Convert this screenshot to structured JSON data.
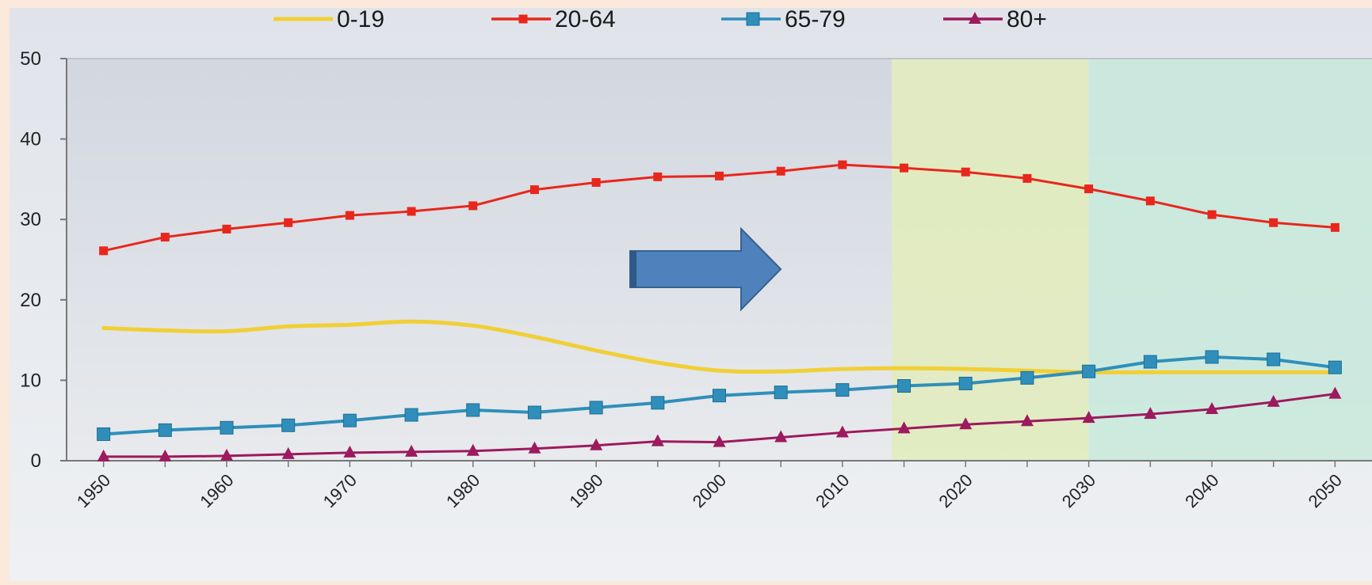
{
  "chart_data": {
    "type": "line",
    "title": "",
    "xlabel": "",
    "ylabel": "",
    "ylim": [
      0,
      50
    ],
    "yticks": [
      0,
      10,
      20,
      30,
      40,
      50
    ],
    "xlim": [
      1947,
      2053
    ],
    "xticks": [
      1950,
      1960,
      1970,
      1980,
      1990,
      2000,
      2010,
      2020,
      2030,
      2040,
      2050
    ],
    "grid": false,
    "legend_position": "top",
    "shaded_periods": [
      {
        "from": 2014,
        "to": 2030,
        "color": "#e2ecbf"
      },
      {
        "from": 2030,
        "to": 2053,
        "color": "#cbe9dd"
      }
    ],
    "annotation": {
      "type": "arrow",
      "direction": "right",
      "color": "#4f81bd"
    },
    "series": [
      {
        "name": "0-19",
        "color": "#f1cf35",
        "marker": "none",
        "smooth": true,
        "x": [
          1950,
          1955,
          1960,
          1965,
          1970,
          1975,
          1980,
          1985,
          1990,
          1995,
          2000,
          2005,
          2010,
          2015,
          2020,
          2025,
          2030,
          2035,
          2040,
          2045,
          2050
        ],
        "values": [
          16.5,
          16.2,
          16.1,
          16.7,
          16.9,
          17.3,
          16.8,
          15.4,
          13.7,
          12.2,
          11.2,
          11.1,
          11.4,
          11.5,
          11.4,
          11.2,
          11.0,
          11.0,
          11.0,
          11.0,
          11.0
        ]
      },
      {
        "name": "20-64",
        "color": "#e8271c",
        "marker": "square-small",
        "smooth": false,
        "x": [
          1950,
          1955,
          1960,
          1965,
          1970,
          1975,
          1980,
          1985,
          1990,
          1995,
          2000,
          2005,
          2010,
          2015,
          2020,
          2025,
          2030,
          2035,
          2040,
          2045,
          2050
        ],
        "values": [
          26.1,
          27.8,
          28.8,
          29.6,
          30.5,
          31.0,
          31.7,
          33.7,
          34.6,
          35.3,
          35.4,
          36.0,
          36.8,
          36.4,
          35.9,
          35.1,
          33.8,
          32.3,
          30.6,
          29.6,
          29.0
        ]
      },
      {
        "name": "65-79",
        "color": "#2f8fba",
        "marker": "square",
        "smooth": false,
        "x": [
          1950,
          1955,
          1960,
          1965,
          1970,
          1975,
          1980,
          1985,
          1990,
          1995,
          2000,
          2005,
          2010,
          2015,
          2020,
          2025,
          2030,
          2035,
          2040,
          2045,
          2050
        ],
        "values": [
          3.3,
          3.8,
          4.1,
          4.4,
          5.0,
          5.7,
          6.3,
          6.0,
          6.6,
          7.2,
          8.1,
          8.5,
          8.8,
          9.3,
          9.6,
          10.3,
          11.1,
          12.3,
          12.9,
          12.6,
          11.6
        ]
      },
      {
        "name": "80+",
        "color": "#9c1a5d",
        "marker": "triangle",
        "smooth": false,
        "x": [
          1950,
          1955,
          1960,
          1965,
          1970,
          1975,
          1980,
          1985,
          1990,
          1995,
          2000,
          2005,
          2010,
          2015,
          2020,
          2025,
          2030,
          2035,
          2040,
          2045,
          2050
        ],
        "values": [
          0.5,
          0.5,
          0.6,
          0.8,
          1.0,
          1.1,
          1.2,
          1.5,
          1.9,
          2.4,
          2.3,
          2.9,
          3.5,
          4.0,
          4.5,
          4.9,
          5.3,
          5.8,
          6.4,
          7.3,
          8.3
        ]
      }
    ]
  }
}
